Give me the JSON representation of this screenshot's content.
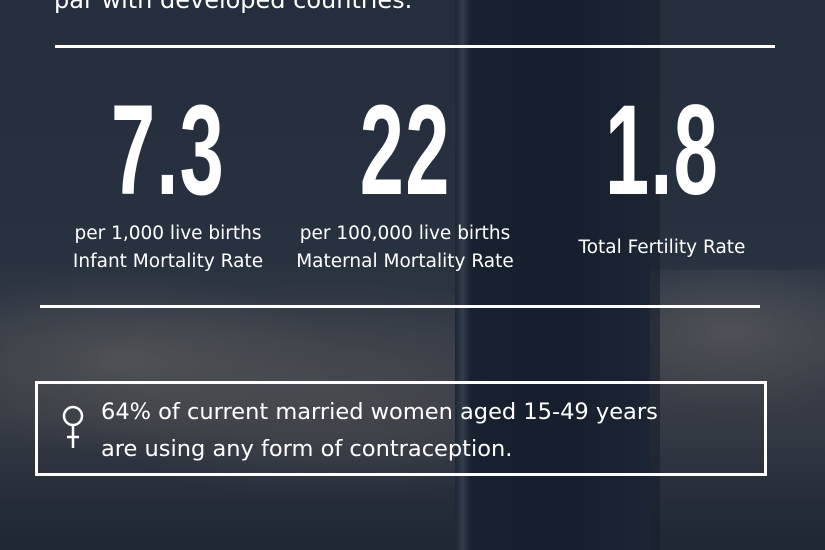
{
  "intro_text": "par with developed countries.",
  "stats": [
    {
      "value": "7.3",
      "unit": "per 1,000 live births",
      "label": "Infant Mortality Rate"
    },
    {
      "value": "22",
      "unit": "per 100,000 live births",
      "label": "Maternal Mortality Rate"
    },
    {
      "value": "1.8",
      "label": "Total Fertility Rate"
    }
  ],
  "callout": {
    "icon": "female-symbol-icon",
    "line1": "64% of current married women aged 15-49 years",
    "line2": "are using any form of contraception."
  }
}
